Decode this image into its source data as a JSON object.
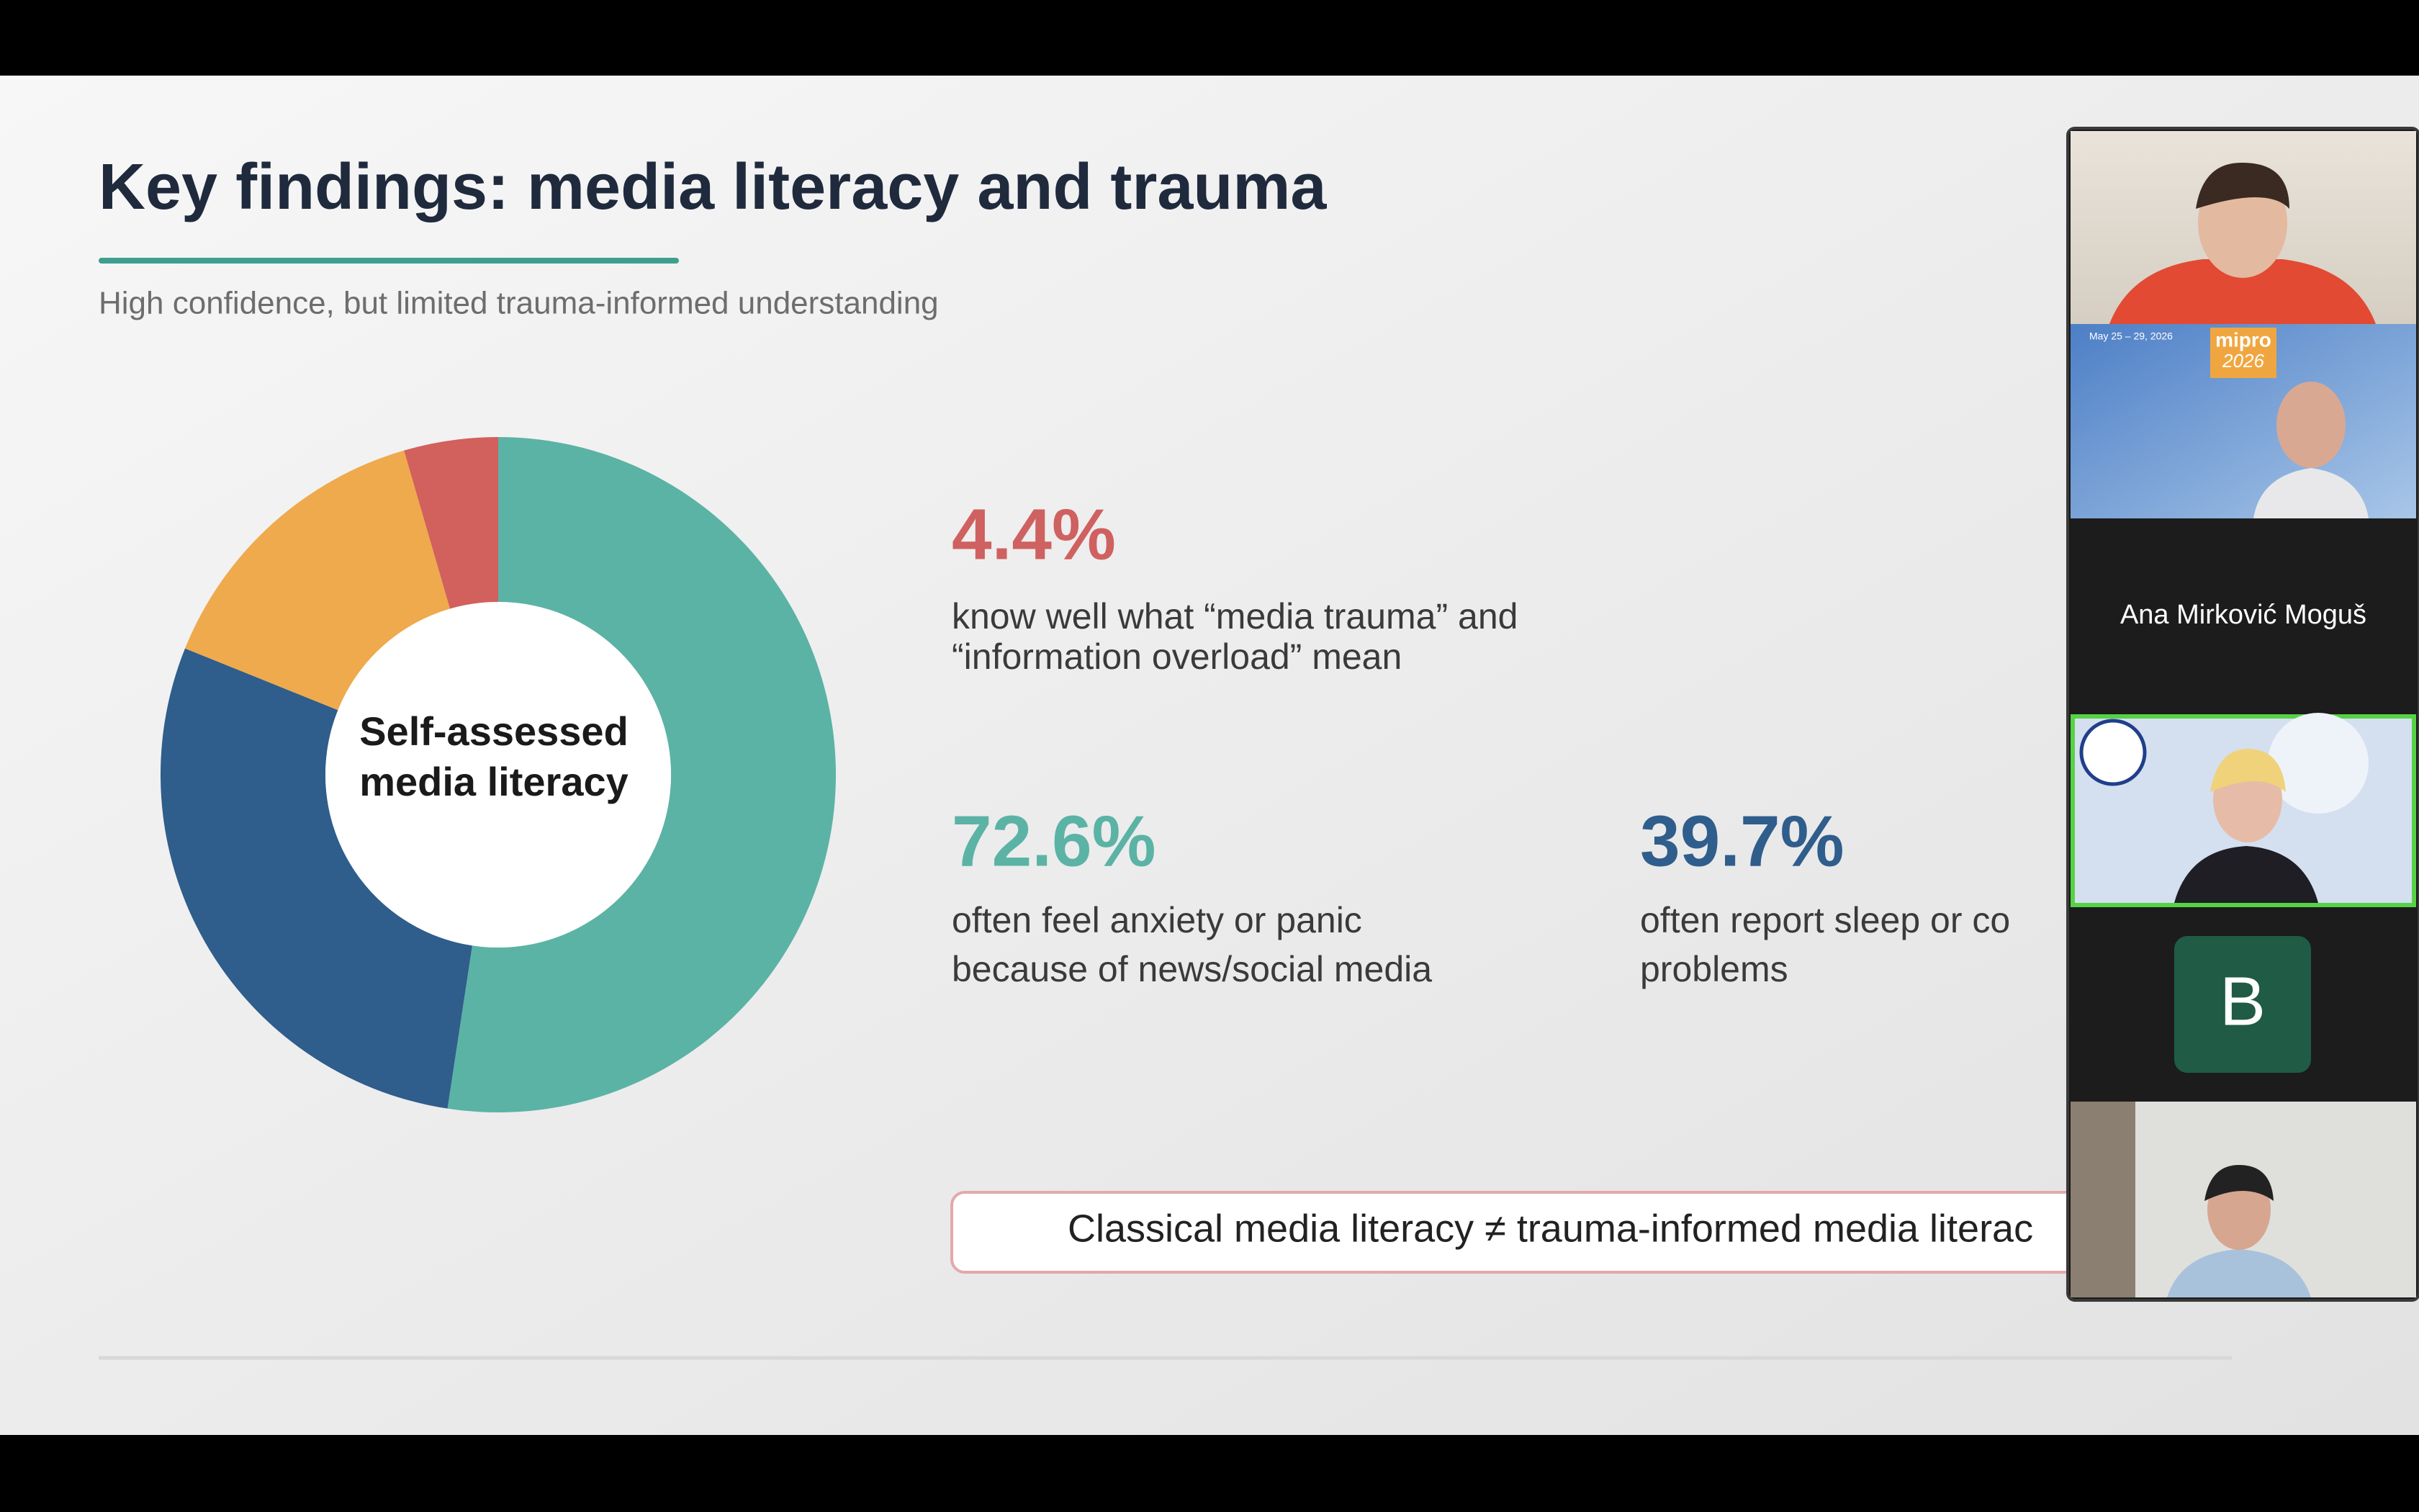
{
  "slide": {
    "title": "Key findings: media literacy and trauma",
    "subtitle": "High confidence, but limited trauma-informed understanding",
    "chart_data": {
      "type": "pie",
      "center_label": [
        "Self-assessed",
        "media literacy"
      ],
      "values": [
        52.4,
        28.7,
        14.4,
        4.5
      ],
      "colors": [
        "#5bb3a5",
        "#2f5d8c",
        "#eeaa4c",
        "#d2605c"
      ]
    },
    "stats": [
      {
        "value": "4.4%",
        "color": "#cf6160",
        "lines": [
          "know well what “media trauma” and",
          "“information overload” mean"
        ]
      },
      {
        "value": "72.6%",
        "color": "#5bb3a5",
        "lines": [
          "often feel anxiety or panic",
          "because of news/social media"
        ]
      },
      {
        "value": "39.7%",
        "color": "#2f5d8c",
        "lines": [
          "often report sleep or co",
          "problems"
        ]
      }
    ],
    "callout": "Classical media literacy ≠ trauma-informed media literac"
  },
  "participants": {
    "conference": {
      "dates": "May 25 – 29, 2026",
      "brand": "mipro",
      "year": "2026"
    },
    "name_tile": "Ana Mirković Moguš",
    "avatar_initial": "B"
  }
}
